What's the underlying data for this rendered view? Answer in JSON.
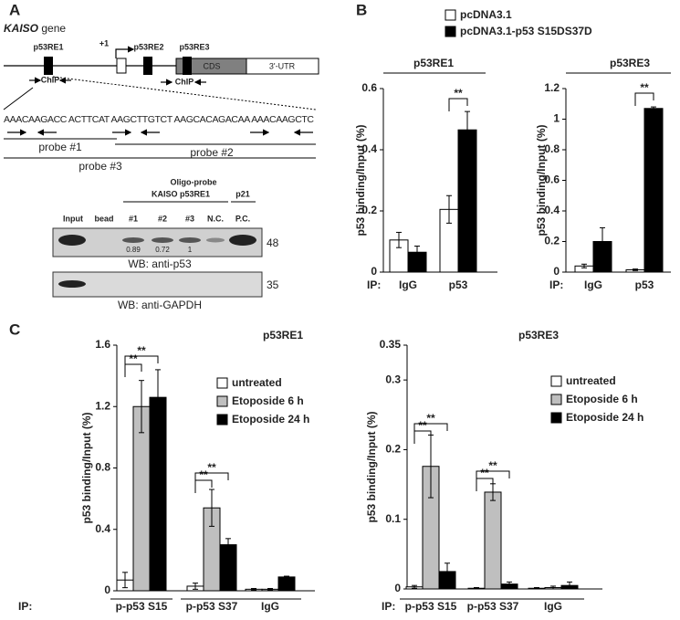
{
  "panel_labels": [
    "A",
    "B",
    "C"
  ],
  "panel_a": {
    "gene_name": "KAISO",
    "gene_word": "gene",
    "elements": {
      "p53re1": "p53RE1",
      "tss": "+1",
      "p53re2": "p53RE2",
      "p53re3": "p53RE3",
      "cds": "CDS",
      "utr": "3'-UTR"
    },
    "chip": [
      "ChIP",
      "ChIP"
    ],
    "sequence": "AAACAAGACC ACTTCAT AAGCTTGTCT AAGCACAGACAA AAACAAGCTC",
    "probes": [
      "probe #1",
      "probe #2",
      "probe #3"
    ],
    "blot": {
      "oligo_probe": "Oligo-probe",
      "kaiso": "KAISO p53RE1",
      "p21": "p21",
      "lanes": [
        "Input",
        "bead",
        "#1",
        "#2",
        "#3",
        "N.C.",
        "P.C."
      ],
      "quant": [
        "0.89",
        "0.72",
        "1"
      ],
      "markers": [
        "48",
        "35"
      ],
      "wb": [
        "WB: anti-p53",
        "WB: anti-GAPDH"
      ]
    }
  },
  "chart_data": [
    {
      "type": "bar",
      "title": "p53RE1",
      "y_label": "p53 binding/Input (%)",
      "ip_label": "IP:",
      "categories": [
        "IgG",
        "p53"
      ],
      "series": [
        {
          "name": "pcDNA3.1",
          "color": "#ffffff",
          "values": [
            0.105,
            0.205
          ],
          "errors": [
            0.025,
            0.045
          ]
        },
        {
          "name": "pcDNA3.1-p53 S15DS37D",
          "color": "#000000",
          "values": [
            0.065,
            0.465
          ],
          "errors": [
            0.02,
            0.06
          ]
        }
      ],
      "ylim": [
        0,
        0.6
      ],
      "yticks": [
        0,
        0.2,
        0.4,
        0.6
      ],
      "annotations": [
        "**"
      ]
    },
    {
      "type": "bar",
      "title": "p53RE3",
      "y_label": "p53 binding/Input (%)",
      "ip_label": "IP:",
      "categories": [
        "IgG",
        "p53"
      ],
      "series": [
        {
          "color": "#ffffff",
          "values": [
            0.04,
            0.015
          ],
          "errors": [
            0.012,
            0.005
          ]
        },
        {
          "color": "#000000",
          "values": [
            0.2,
            1.07
          ],
          "errors": [
            0.09,
            0.01
          ]
        }
      ],
      "ylim": [
        0,
        1.2
      ],
      "yticks": [
        0,
        0.2,
        0.4,
        0.6,
        0.8,
        1,
        1.2
      ],
      "annotations": [
        "**"
      ]
    },
    {
      "type": "bar",
      "title": "p53RE1",
      "y_label": "p53 binding/Input (%)",
      "ip_label": "IP:",
      "categories": [
        "p-p53 S15",
        "p-p53 S37",
        "IgG"
      ],
      "series": [
        {
          "name": "untreated",
          "color": "#ffffff",
          "values": [
            0.07,
            0.03,
            0.01
          ],
          "errors": [
            0.05,
            0.02,
            0.005
          ]
        },
        {
          "name": "Etoposide 6 h",
          "color": "#bfbfbf",
          "values": [
            1.2,
            0.54,
            0.01
          ],
          "errors": [
            0.17,
            0.12,
            0.005
          ]
        },
        {
          "name": "Etoposide 24 h",
          "color": "#000000",
          "values": [
            1.26,
            0.3,
            0.09
          ],
          "errors": [
            0.18,
            0.04,
            0.005
          ]
        }
      ],
      "ylim": [
        0,
        1.6
      ],
      "yticks": [
        0,
        0.4,
        0.8,
        1.2,
        1.6
      ],
      "annotations": [
        "**",
        "**",
        "**",
        "**"
      ]
    },
    {
      "type": "bar",
      "title": "p53RE3",
      "y_label": "p53 binding/Input (%)",
      "ip_label": "IP:",
      "categories": [
        "p-p53 S15",
        "p-p53 S37",
        "IgG"
      ],
      "series": [
        {
          "name": "untreated",
          "color": "#ffffff",
          "values": [
            0.003,
            0.001,
            0.001
          ],
          "errors": [
            0.002,
            0.001,
            0.001
          ]
        },
        {
          "name": "Etoposide 6 h",
          "color": "#bfbfbf",
          "values": [
            0.176,
            0.139,
            0.002
          ],
          "errors": [
            0.045,
            0.012,
            0.002
          ]
        },
        {
          "name": "Etoposide 24 h",
          "color": "#000000",
          "values": [
            0.025,
            0.007,
            0.005
          ],
          "errors": [
            0.012,
            0.003,
            0.005
          ]
        }
      ],
      "ylim": [
        0,
        0.35
      ],
      "yticks": [
        0,
        0.1,
        0.2,
        0.3,
        0.35
      ],
      "annotations": [
        "**",
        "**",
        "**",
        "**"
      ]
    }
  ]
}
